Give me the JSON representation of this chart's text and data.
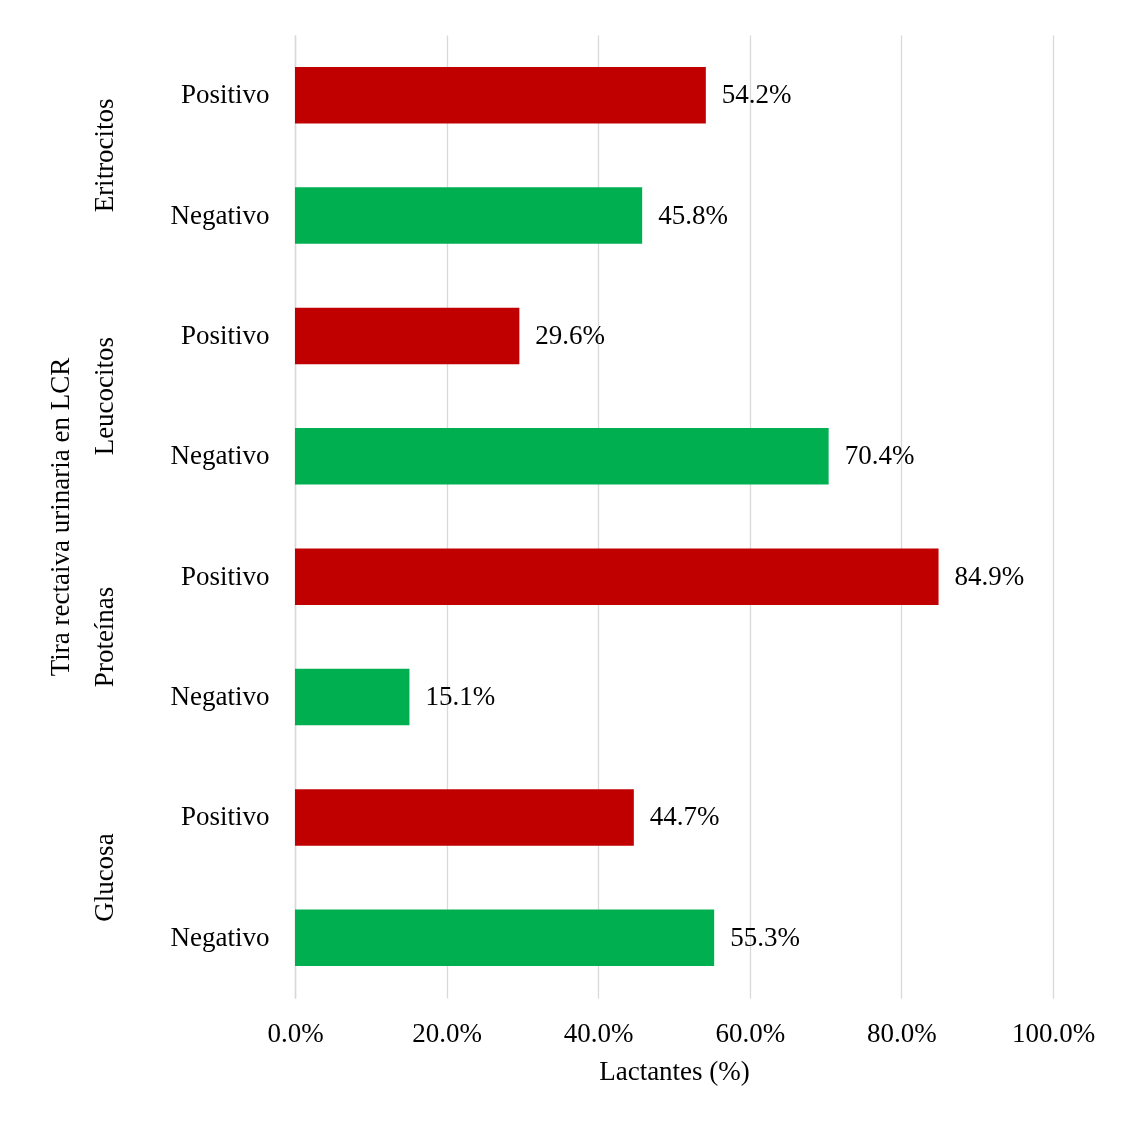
{
  "chart_data": {
    "type": "bar",
    "orientation": "horizontal",
    "xlabel": "Lactantes (%)",
    "ylabel": "Tira rectaiva urinaria en LCR",
    "categories": [
      "Positivo",
      "Negativo",
      "Positivo",
      "Negativo",
      "Positivo",
      "Negativo",
      "Positivo",
      "Negativo"
    ],
    "values": [
      54.2,
      45.8,
      29.6,
      70.4,
      84.9,
      15.1,
      44.7,
      55.3
    ],
    "colors": [
      "#c00000",
      "#00b050",
      "#c00000",
      "#00b050",
      "#c00000",
      "#00b050",
      "#c00000",
      "#00b050"
    ],
    "value_labels": [
      "54.2%",
      "45.8%",
      "29.6%",
      "70.4%",
      "84.9%",
      "15.1%",
      "44.7%",
      "55.3%"
    ],
    "annotations": [
      "Eritrocitos",
      "Leucocitos",
      "Proteínas",
      "Glucosa"
    ],
    "xlim": [
      0,
      100
    ],
    "xticks": [
      {
        "value": 0,
        "label": "0.0%"
      },
      {
        "value": 20,
        "label": "20.0%"
      },
      {
        "value": 40,
        "label": "40.0%"
      },
      {
        "value": 60,
        "label": "60.0%"
      },
      {
        "value": 80,
        "label": "80.0%"
      },
      {
        "value": 100,
        "label": "100.0%"
      }
    ],
    "grid": "x"
  }
}
